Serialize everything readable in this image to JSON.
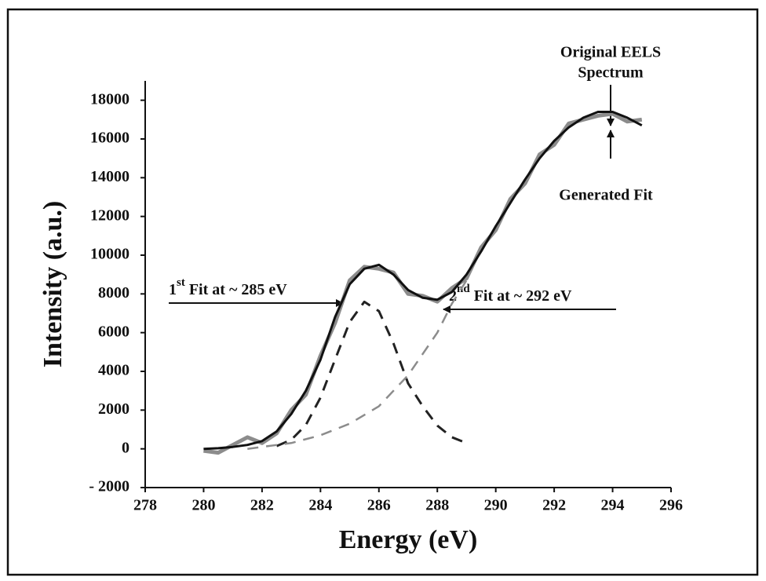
{
  "chart_data": {
    "type": "line",
    "x_label": "Energy (eV)",
    "y_label": "Intensity (a.u.)",
    "xlim": [
      278,
      296
    ],
    "xticks": [
      278,
      280,
      282,
      284,
      286,
      288,
      290,
      292,
      294,
      296
    ],
    "ylim": [
      -2000,
      19000
    ],
    "yticks": [
      {
        "value": -2000,
        "label": "- 2000"
      },
      0,
      2000,
      4000,
      6000,
      8000,
      10000,
      12000,
      14000,
      16000,
      18000
    ],
    "x": [
      280,
      280.5,
      281,
      281.5,
      282,
      282.5,
      283,
      283.5,
      284,
      284.5,
      285,
      285.5,
      286,
      286.5,
      287,
      287.5,
      288,
      288.5,
      289,
      289.5,
      290,
      290.5,
      291,
      291.5,
      292,
      292.5,
      293,
      293.5,
      294,
      294.5,
      295
    ],
    "series": [
      {
        "color": "#8c8c8c",
        "dashed": false,
        "width": 5,
        "values": [
          -100,
          -200,
          200,
          600,
          300,
          800,
          2000,
          2800,
          4800,
          6500,
          8700,
          9400,
          9300,
          9100,
          8000,
          7900,
          7600,
          8300,
          8800,
          10400,
          11300,
          12900,
          13700,
          15200,
          15700,
          16800,
          17000,
          17200,
          17300,
          16900,
          17000
        ]
      },
      {
        "color": "#111111",
        "dashed": false,
        "width": 3,
        "values": [
          0,
          30,
          100,
          200,
          400,
          900,
          1800,
          3000,
          4600,
          6800,
          8500,
          9300,
          9500,
          9000,
          8200,
          7800,
          7700,
          8100,
          9000,
          10200,
          11500,
          12700,
          13900,
          15000,
          15900,
          16600,
          17100,
          17400,
          17400,
          17100,
          16700
        ]
      },
      {
        "color": "#222222",
        "dashed": true,
        "width": 3,
        "x": [
          282.5,
          283,
          283.5,
          284,
          284.5,
          285,
          285.5,
          286,
          286.5,
          287,
          287.5,
          288,
          288.5,
          289
        ],
        "values": [
          144,
          466,
          1230,
          2640,
          4610,
          6550,
          7590,
          7110,
          5440,
          3380,
          2200,
          1200,
          600,
          300
        ]
      },
      {
        "color": "#8c8c8c",
        "dashed": true,
        "width": 2.5,
        "x": [
          281.5,
          282,
          283,
          284,
          285,
          286,
          287,
          288,
          288.5,
          289
        ],
        "values": [
          0,
          100,
          300,
          700,
          1300,
          2200,
          3800,
          6000,
          7500,
          8700
        ]
      }
    ],
    "annotations": [
      {
        "lines": [
          "Original EELS",
          "Spectrum"
        ]
      },
      {
        "lines": [
          "Generated Fit"
        ]
      },
      {
        "number": "1",
        "superscript": "st",
        "text": "Fit at ~ 285 eV"
      },
      {
        "number": "2",
        "superscript": "nd",
        "text": "Fit at ~ 292 eV"
      }
    ]
  }
}
